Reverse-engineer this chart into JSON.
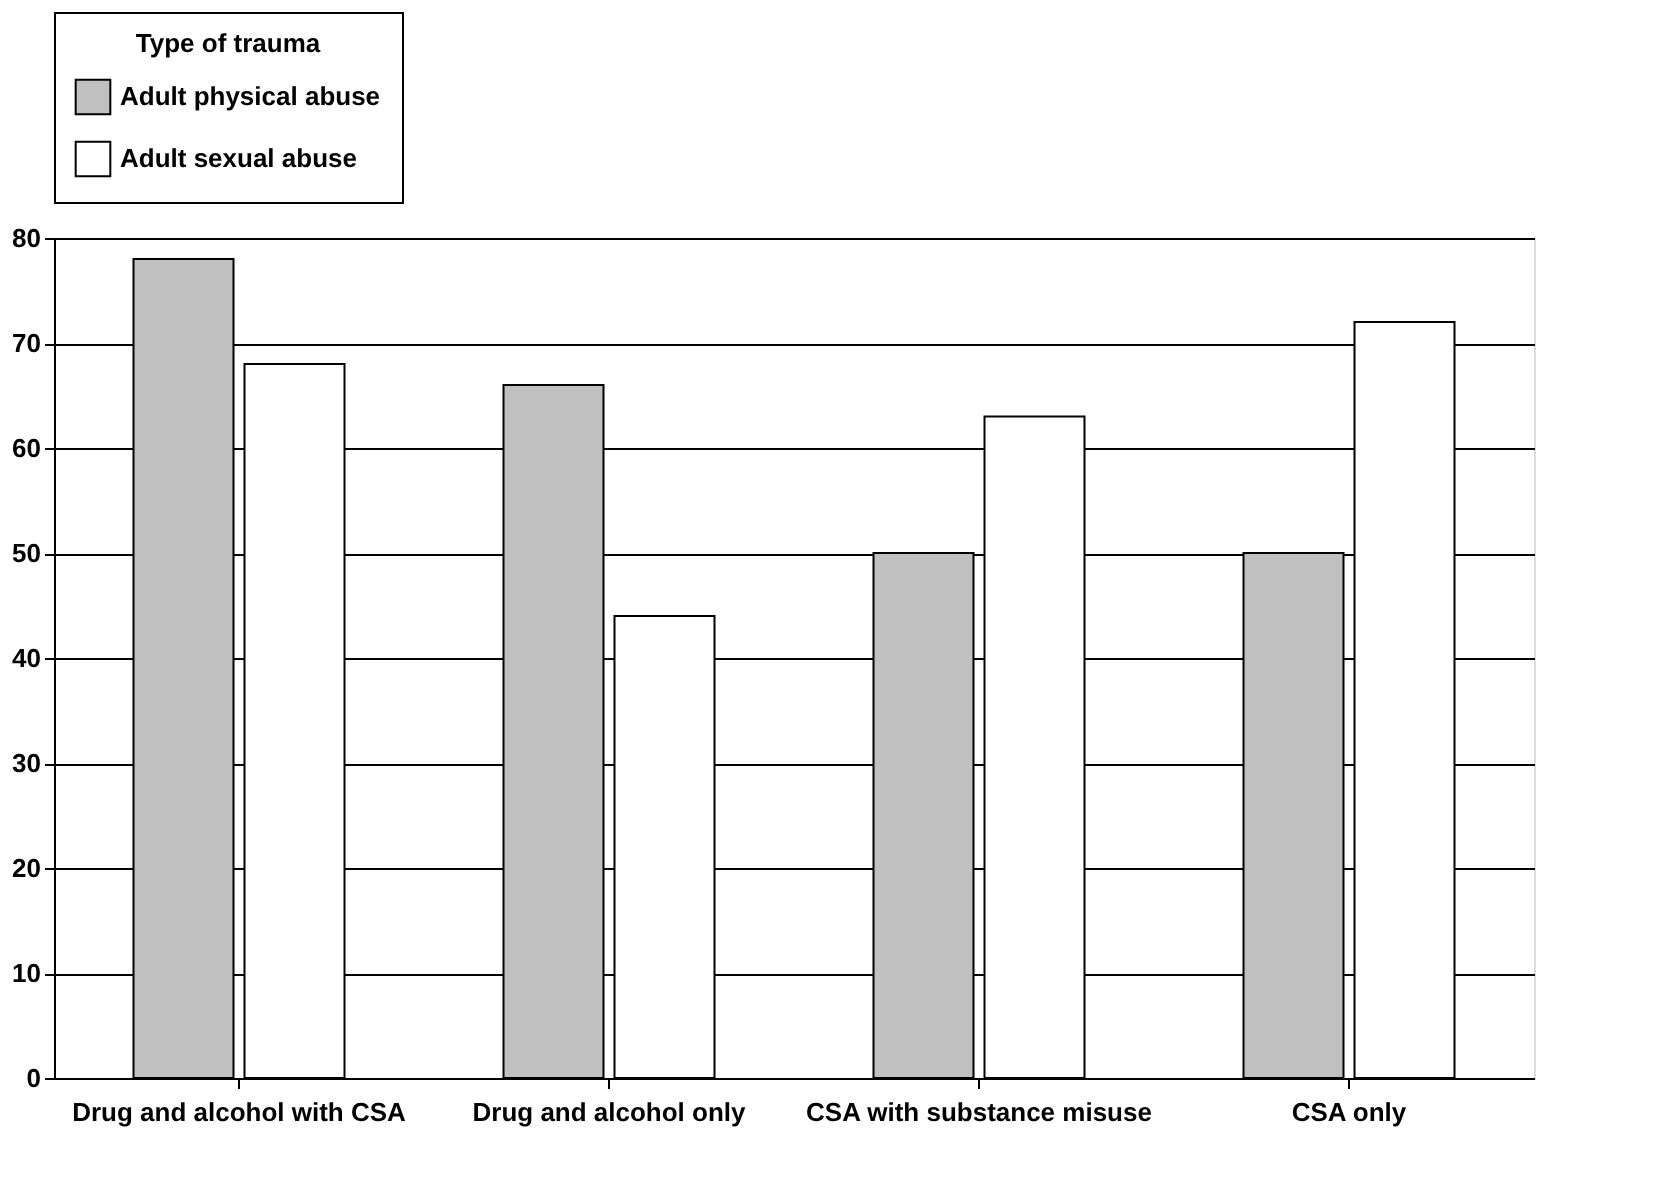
{
  "chart_data": {
    "type": "bar",
    "legend_title": "Type of trauma",
    "categories": [
      "Drug and alcohol with CSA",
      "Drug and alcohol only",
      "CSA with substance misuse",
      "CSA only"
    ],
    "series": [
      {
        "name": "Adult physical abuse",
        "color": "#c0c0c0",
        "values": [
          78,
          66,
          50,
          50
        ]
      },
      {
        "name": "Adult sexual abuse",
        "color": "#ffffff",
        "values": [
          68,
          44,
          63,
          72
        ]
      }
    ],
    "ylim": [
      0,
      80
    ],
    "yticks": [
      0,
      10,
      20,
      30,
      40,
      50,
      60,
      70,
      80
    ],
    "grid": "y",
    "legend": "top"
  }
}
